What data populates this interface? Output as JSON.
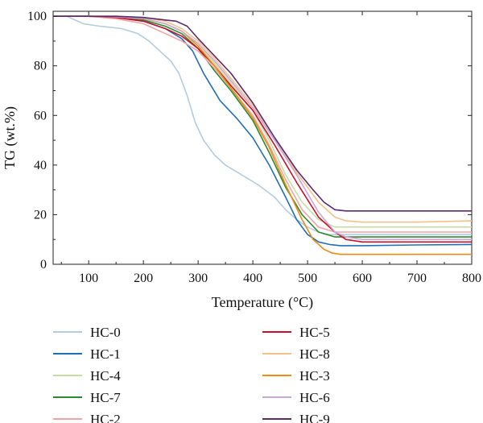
{
  "chart_data": {
    "type": "line",
    "xlabel": "Temperature (°C)",
    "ylabel": "TG (wt.%)",
    "xlim": [
      35,
      800
    ],
    "ylim": [
      0,
      102
    ],
    "xticks": [
      100,
      200,
      300,
      400,
      500,
      600,
      700,
      800
    ],
    "yticks": [
      0,
      20,
      40,
      60,
      80,
      100
    ],
    "grid": false,
    "legend_position": "bottom",
    "series": [
      {
        "name": "HC-0",
        "color": "#b3cde0",
        "x": [
          35,
          60,
          90,
          120,
          160,
          190,
          210,
          230,
          250,
          265,
          280,
          295,
          310,
          330,
          350,
          380,
          410,
          440,
          460,
          480,
          500,
          520,
          540,
          560,
          600,
          700,
          800
        ],
        "y": [
          100,
          100,
          97,
          96,
          95,
          93,
          90,
          86,
          82,
          77,
          68,
          57,
          50,
          44,
          40,
          36,
          32,
          27,
          22,
          18,
          15,
          13,
          12,
          12,
          12,
          12,
          12
        ]
      },
      {
        "name": "HC-1",
        "color": "#1f6fb8",
        "x": [
          35,
          100,
          150,
          200,
          240,
          270,
          290,
          310,
          340,
          370,
          400,
          430,
          460,
          480,
          500,
          520,
          540,
          560,
          600,
          700,
          800
        ],
        "y": [
          100,
          100,
          99.5,
          98,
          95,
          91,
          86,
          77,
          66,
          59,
          51,
          40,
          27,
          18,
          12,
          9,
          8,
          7.5,
          7.5,
          7.8,
          8
        ]
      },
      {
        "name": "HC-4",
        "color": "#c5dfa3",
        "x": [
          35,
          100,
          150,
          200,
          240,
          270,
          300,
          330,
          360,
          400,
          430,
          460,
          490,
          520,
          550,
          600,
          700,
          800
        ],
        "y": [
          100,
          100,
          99.8,
          99,
          97,
          94,
          89,
          81,
          73,
          62,
          50,
          36,
          25,
          18,
          15,
          15,
          15,
          15
        ]
      },
      {
        "name": "HC-7",
        "color": "#2e8a2e",
        "x": [
          35,
          100,
          150,
          200,
          240,
          270,
          300,
          330,
          360,
          400,
          430,
          460,
          490,
          520,
          550,
          600,
          700,
          800
        ],
        "y": [
          100,
          100,
          99.8,
          98.5,
          96,
          93,
          87,
          78,
          70,
          58,
          45,
          31,
          20,
          13,
          11,
          11,
          11,
          11
        ]
      },
      {
        "name": "HC-2",
        "color": "#f4a3a3",
        "x": [
          35,
          100,
          150,
          200,
          240,
          270,
          300,
          330,
          360,
          400,
          430,
          460,
          490,
          520,
          550,
          600,
          700,
          800
        ],
        "y": [
          100,
          100,
          99,
          97,
          93,
          90,
          86,
          79,
          71,
          60,
          48,
          34,
          22,
          15,
          13,
          13,
          13,
          13
        ]
      },
      {
        "name": "HC-5",
        "color": "#c8102e",
        "x": [
          35,
          100,
          150,
          200,
          240,
          270,
          300,
          330,
          360,
          400,
          440,
          480,
          520,
          550,
          570,
          600,
          700,
          800
        ],
        "y": [
          100,
          100,
          99.5,
          98,
          95,
          92,
          87,
          80,
          72,
          62,
          48,
          33,
          19,
          13,
          10,
          9,
          9,
          9
        ]
      },
      {
        "name": "HC-8",
        "color": "#f5c089",
        "x": [
          35,
          100,
          150,
          200,
          240,
          270,
          300,
          330,
          360,
          400,
          440,
          480,
          520,
          550,
          570,
          600,
          700,
          800
        ],
        "y": [
          100,
          100,
          100,
          99.5,
          98,
          95,
          90,
          83,
          75,
          64,
          50,
          37,
          25,
          19,
          17.5,
          17,
          17,
          17.5
        ]
      },
      {
        "name": "HC-3",
        "color": "#f08b14",
        "x": [
          35,
          100,
          150,
          200,
          240,
          270,
          300,
          330,
          360,
          400,
          430,
          460,
          490,
          510,
          530,
          545,
          560,
          600,
          700,
          800
        ],
        "y": [
          100,
          100,
          99.8,
          99,
          97,
          94,
          88,
          80,
          71,
          59,
          47,
          32,
          18,
          10,
          6,
          4.5,
          4,
          4,
          4,
          4
        ]
      },
      {
        "name": "HC-6",
        "color": "#c9a9d4",
        "x": [
          35,
          100,
          150,
          200,
          240,
          270,
          300,
          330,
          360,
          400,
          440,
          480,
          520,
          550,
          570,
          600,
          700,
          800
        ],
        "y": [
          100,
          100,
          99.8,
          99,
          97,
          94,
          89,
          82,
          74,
          63,
          50,
          36,
          21,
          13,
          11,
          10,
          10,
          10
        ]
      },
      {
        "name": "HC-9",
        "color": "#5b2a6e",
        "x": [
          35,
          100,
          150,
          200,
          240,
          260,
          280,
          300,
          330,
          360,
          400,
          440,
          480,
          510,
          530,
          550,
          570,
          600,
          700,
          800
        ],
        "y": [
          100,
          100,
          100,
          99.5,
          98.5,
          98,
          96,
          91,
          84,
          77,
          65,
          51,
          38,
          30,
          25,
          22,
          21.5,
          21.5,
          21.5,
          21.5
        ]
      }
    ]
  }
}
